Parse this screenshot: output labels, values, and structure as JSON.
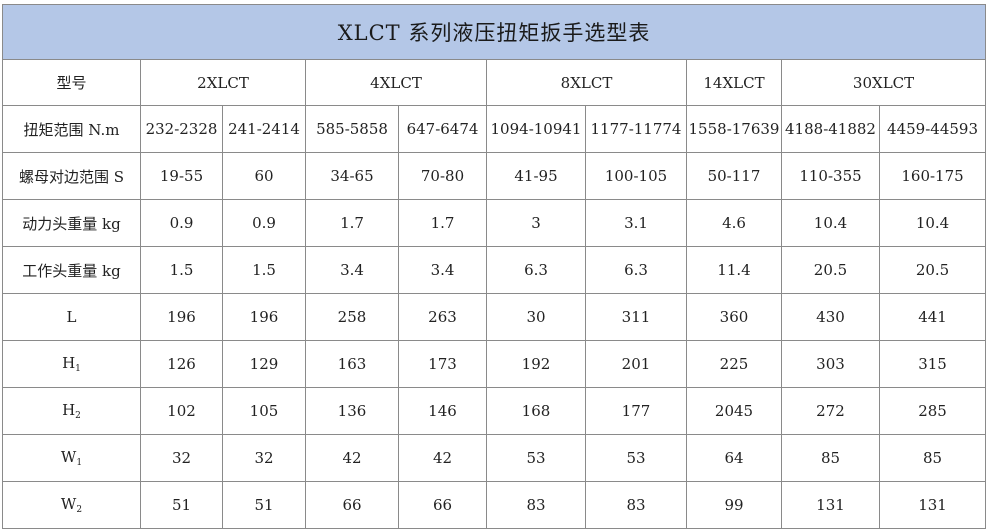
{
  "title": "XLCT 系列液压扭矩扳手选型表",
  "model_header": "型号",
  "models": [
    "2XLCT",
    "4XLCT",
    "8XLCT",
    "14XLCT",
    "30XLCT"
  ],
  "rows": [
    {
      "label": "扭矩范围 N.m",
      "values": [
        "232-2328",
        "241-2414",
        "585-5858",
        "647-6474",
        "1094-10941",
        "1177-11774",
        "1558-17639",
        "4188-41882",
        "4459-44593"
      ]
    },
    {
      "label": "螺母对边范围 S",
      "values": [
        "19-55",
        "60",
        "34-65",
        "70-80",
        "41-95",
        "100-105",
        "50-117",
        "110-355",
        "160-175"
      ]
    },
    {
      "label": "动力头重量 kg",
      "values": [
        "0.9",
        "0.9",
        "1.7",
        "1.7",
        "3",
        "3.1",
        "4.6",
        "10.4",
        "10.4"
      ]
    },
    {
      "label": "工作头重量 kg",
      "values": [
        "1.5",
        "1.5",
        "3.4",
        "3.4",
        "6.3",
        "6.3",
        "11.4",
        "20.5",
        "20.5"
      ]
    },
    {
      "label": "L",
      "values": [
        "196",
        "196",
        "258",
        "263",
        "30",
        "311",
        "360",
        "430",
        "441"
      ]
    },
    {
      "label": "H",
      "sub": "1",
      "values": [
        "126",
        "129",
        "163",
        "173",
        "192",
        "201",
        "225",
        "303",
        "315"
      ]
    },
    {
      "label": "H",
      "sub": "2",
      "values": [
        "102",
        "105",
        "136",
        "146",
        "168",
        "177",
        "2045",
        "272",
        "285"
      ]
    },
    {
      "label": "W",
      "sub": "1",
      "values": [
        "32",
        "32",
        "42",
        "42",
        "53",
        "53",
        "64",
        "85",
        "85"
      ]
    },
    {
      "label": "W",
      "sub": "2",
      "values": [
        "51",
        "51",
        "66",
        "66",
        "83",
        "83",
        "99",
        "131",
        "131"
      ]
    }
  ]
}
